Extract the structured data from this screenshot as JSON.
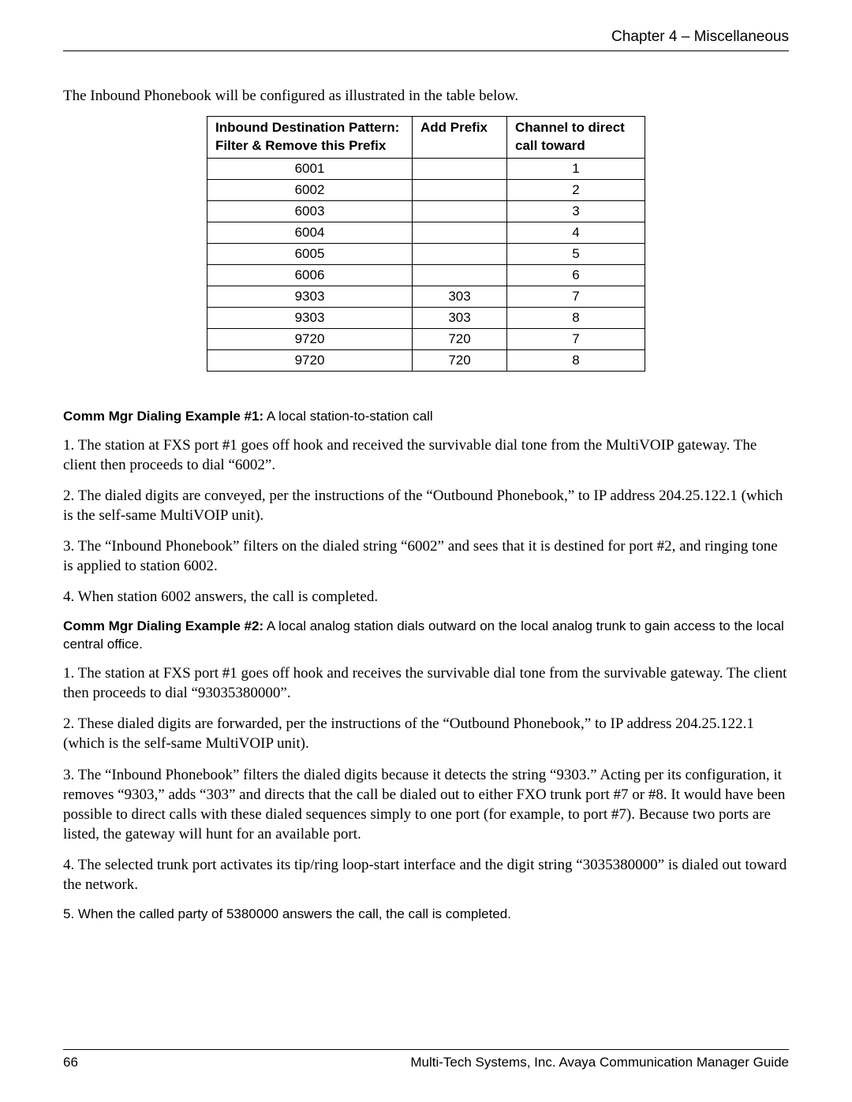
{
  "header": {
    "chapter": "Chapter 4 – Miscellaneous"
  },
  "intro": "The Inbound Phonebook will be configured as illustrated in the table below.",
  "table": {
    "columns": [
      "Inbound Destination Pattern:\nFilter & Remove this Prefix",
      "Add Prefix",
      "Channel to direct call toward"
    ],
    "rows": [
      [
        "6001",
        "",
        "1"
      ],
      [
        "6002",
        "",
        "2"
      ],
      [
        "6003",
        "",
        "3"
      ],
      [
        "6004",
        "",
        "4"
      ],
      [
        "6005",
        "",
        "5"
      ],
      [
        "6006",
        "",
        "6"
      ],
      [
        "9303",
        "303",
        "7"
      ],
      [
        "9303",
        "303",
        "8"
      ],
      [
        "9720",
        "720",
        "7"
      ],
      [
        "9720",
        "720",
        "8"
      ]
    ]
  },
  "ex1": {
    "title": "Comm Mgr Dialing Example #1:",
    "desc": "  A local station-to-station call",
    "p1": "1. The station at FXS port #1 goes off hook and received the survivable dial tone from the MultiVOIP gateway.  The client then proceeds to dial “6002”.",
    "p2": "2. The dialed digits are conveyed, per the instructions of the “Outbound Phonebook,” to IP address 204.25.122.1 (which is the self-same MultiVOIP unit).",
    "p3": "3.  The “Inbound Phonebook” filters on the dialed string “6002” and sees that it is destined for port #2, and ringing tone is applied to station 6002.",
    "p4": "4.  When station 6002 answers, the call is completed."
  },
  "ex2": {
    "title": "Comm Mgr Dialing Example #2:",
    "desc": "  A local analog station dials outward on the local analog trunk to gain access to the local central office.",
    "p1": "1.  The station at FXS port #1 goes off hook and receives the survivable dial tone from the survivable gateway.  The client then proceeds to dial “93035380000”.",
    "p2": "2.  These dialed digits are forwarded, per the instructions of the “Outbound Phonebook,” to IP address 204.25.122.1 (which is the self-same MultiVOIP unit).",
    "p3": "3. The “Inbound Phonebook” filters the dialed digits because it detects the string “9303.”  Acting per its configuration, it removes “9303,” adds “303” and directs that the call be dialed out to either FXO trunk port #7 or #8.  It would have been possible to direct calls with these dialed sequences simply to one port (for example, to port #7).  Because two ports are listed, the gateway will hunt for an available port.",
    "p4": "4. The selected trunk port activates its tip/ring loop-start interface and the digit string “3035380000” is dialed out toward the network.",
    "p5": "5. When the called party of 5380000 answers the call, the call is completed."
  },
  "footer": {
    "page": "66",
    "doc": "Multi-Tech Systems, Inc. Avaya Communication Manager Guide"
  }
}
